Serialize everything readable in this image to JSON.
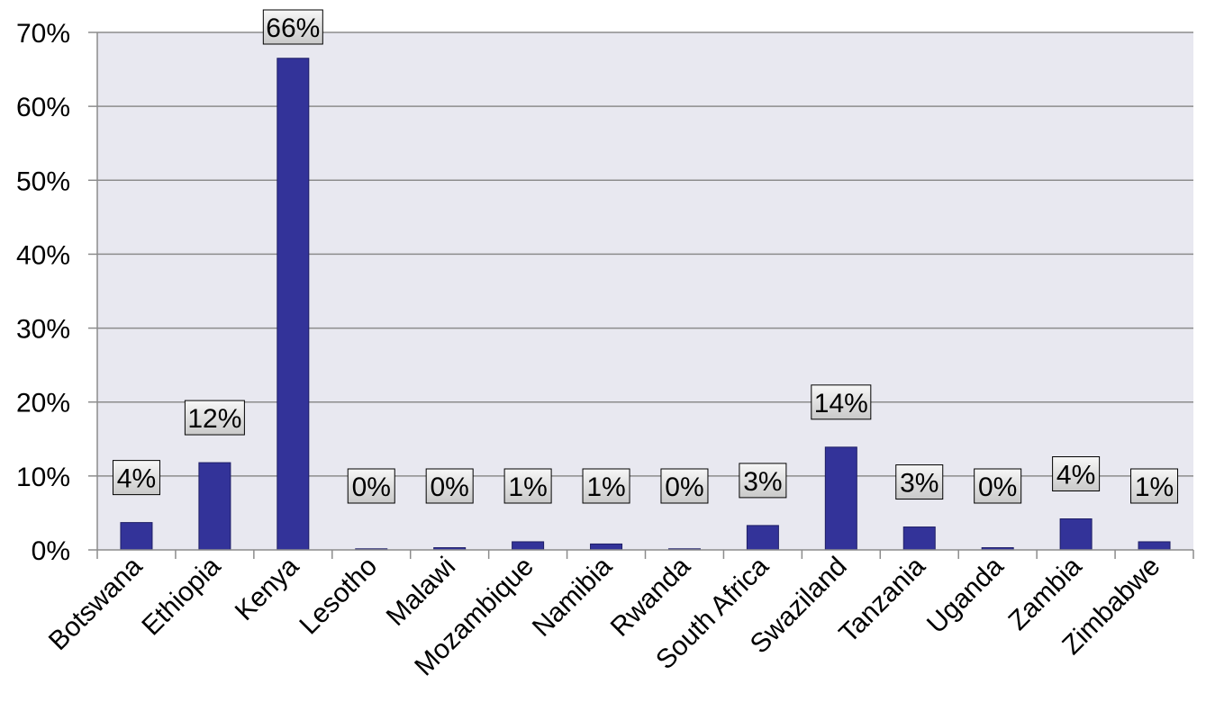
{
  "chart_data": {
    "type": "bar",
    "categories": [
      "Botswana",
      "Ethiopia",
      "Kenya",
      "Lesotho",
      "Malawi",
      "Mozambique",
      "Namibia",
      "Rwanda",
      "South Africa",
      "Swaziland",
      "Tanzania",
      "Uganda",
      "Zambia",
      "Zimbabwe"
    ],
    "values": [
      3.7,
      11.8,
      66.5,
      0.1,
      0.3,
      1.1,
      0.8,
      0.1,
      3.3,
      13.9,
      3.1,
      0.3,
      4.2,
      1.1
    ],
    "data_labels": [
      "4%",
      "12%",
      "66%",
      "0%",
      "0%",
      "1%",
      "1%",
      "0%",
      "3%",
      "14%",
      "3%",
      "0%",
      "4%",
      "1%"
    ],
    "ylim": [
      0,
      70
    ],
    "yticks": [
      0,
      10,
      20,
      30,
      40,
      50,
      60,
      70
    ],
    "ytick_labels": [
      "0%",
      "10%",
      "20%",
      "30%",
      "40%",
      "50%",
      "60%",
      "70%"
    ],
    "title": "",
    "xlabel": "",
    "ylabel": "",
    "grid": true,
    "colors": {
      "bar": "#333399",
      "bar_edge": "#1f1f66",
      "plot_background": "#e8e8f0",
      "gridline": "#8c8c8c",
      "label_box_fill": "#e4e4e4",
      "label_box_border": "#000000"
    }
  }
}
